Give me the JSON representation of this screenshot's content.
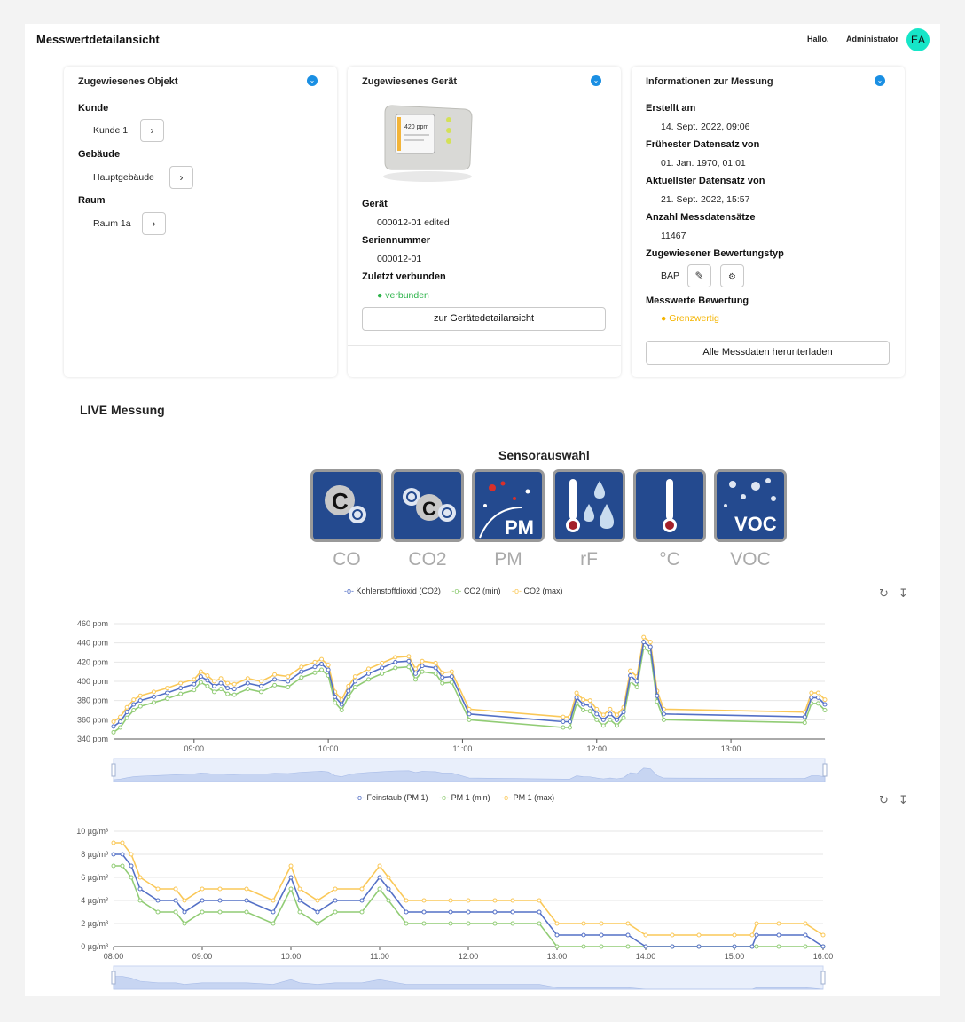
{
  "header": {
    "title": "Messwertdetailansicht",
    "greeting": "Hallo,",
    "user": "Administrator",
    "avatar_initials": "EA"
  },
  "object_card": {
    "title": "Zugewiesenes Objekt",
    "customer_label": "Kunde",
    "customer_value": "Kunde 1",
    "building_label": "Gebäude",
    "building_value": "Hauptgebäude",
    "room_label": "Raum",
    "room_value": "Raum 1a"
  },
  "device_card": {
    "title": "Zugewiesenes Gerät",
    "device_screen_text": "420 ppm",
    "device_label": "Gerät",
    "device_value": "000012-01 edited",
    "serial_label": "Seriennummer",
    "serial_value": "000012-01",
    "last_label": "Zuletzt verbunden",
    "last_value": "verbunden",
    "detail_button": "zur Gerätedetailansicht"
  },
  "info_card": {
    "title": "Informationen zur Messung",
    "created_label": "Erstellt am",
    "created_value": "14. Sept. 2022, 09:06",
    "earliest_label": "Frühester Datensatz von",
    "earliest_value": "01. Jan. 1970, 01:01",
    "latest_label": "Aktuellster Datensatz von",
    "latest_value": "21. Sept. 2022, 15:57",
    "count_label": "Anzahl Messdatensätze",
    "count_value": "11467",
    "rating_type_label": "Zugewiesener Bewertungstyp",
    "rating_type_value": "BAP",
    "rating_label": "Messwerte Bewertung",
    "rating_value": "Grenzwertig",
    "download_button": "Alle Messdaten herunterladen"
  },
  "live": {
    "title": "LIVE Messung",
    "sensor_title": "Sensorauswahl"
  },
  "sensors": [
    {
      "name": "CO",
      "icon": "co-icon"
    },
    {
      "name": "CO2",
      "icon": "co2-icon"
    },
    {
      "name": "PM",
      "icon": "pm-icon"
    },
    {
      "name": "rF",
      "icon": "humidity-icon"
    },
    {
      "name": "°C",
      "icon": "temperature-icon"
    },
    {
      "name": "VOC",
      "icon": "voc-icon"
    }
  ],
  "colors": {
    "blue": "#5470c6",
    "green": "#91cc75",
    "yellow": "#fac858",
    "accent": "#1a8fe3"
  },
  "chart_data": [
    {
      "type": "line",
      "legend_placement": "top-center",
      "series": [
        {
          "name": "Kohlenstoffdioxid (CO2)",
          "color": "#5470c6"
        },
        {
          "name": "CO2 (min)",
          "color": "#91cc75"
        },
        {
          "name": "CO2 (max)",
          "color": "#fac858"
        }
      ],
      "y_ticks": [
        "460 ppm",
        "440 ppm",
        "420 ppm",
        "400 ppm",
        "380 ppm",
        "360 ppm",
        "340 ppm"
      ],
      "ylim": [
        340,
        460
      ],
      "x_ticks": [
        "09:00",
        "10:00",
        "11:00",
        "12:00",
        "13:00"
      ],
      "x_hours": [
        8.4,
        13.7
      ],
      "grid": true,
      "points": [
        [
          8.4,
          353
        ],
        [
          8.45,
          358
        ],
        [
          8.5,
          368
        ],
        [
          8.55,
          376
        ],
        [
          8.6,
          380
        ],
        [
          8.7,
          384
        ],
        [
          8.8,
          388
        ],
        [
          8.9,
          393
        ],
        [
          9.0,
          397
        ],
        [
          9.05,
          405
        ],
        [
          9.1,
          401
        ],
        [
          9.15,
          395
        ],
        [
          9.2,
          398
        ],
        [
          9.25,
          393
        ],
        [
          9.3,
          392
        ],
        [
          9.4,
          398
        ],
        [
          9.5,
          395
        ],
        [
          9.6,
          402
        ],
        [
          9.7,
          400
        ],
        [
          9.8,
          410
        ],
        [
          9.9,
          415
        ],
        [
          9.95,
          418
        ],
        [
          10.0,
          412
        ],
        [
          10.05,
          384
        ],
        [
          10.1,
          376
        ],
        [
          10.15,
          390
        ],
        [
          10.2,
          400
        ],
        [
          10.3,
          408
        ],
        [
          10.4,
          414
        ],
        [
          10.5,
          420
        ],
        [
          10.6,
          421
        ],
        [
          10.65,
          408
        ],
        [
          10.7,
          416
        ],
        [
          10.8,
          414
        ],
        [
          10.85,
          404
        ],
        [
          10.92,
          405
        ],
        [
          11.05,
          366
        ],
        [
          11.75,
          358
        ],
        [
          11.8,
          358
        ],
        [
          11.85,
          383
        ],
        [
          11.9,
          376
        ],
        [
          11.95,
          375
        ],
        [
          12.0,
          366
        ],
        [
          12.05,
          360
        ],
        [
          12.1,
          366
        ],
        [
          12.15,
          360
        ],
        [
          12.2,
          368
        ],
        [
          12.25,
          406
        ],
        [
          12.3,
          400
        ],
        [
          12.35,
          441
        ],
        [
          12.4,
          436
        ],
        [
          12.45,
          385
        ],
        [
          12.5,
          366
        ],
        [
          13.55,
          363
        ],
        [
          13.6,
          383
        ],
        [
          13.65,
          383
        ],
        [
          13.7,
          376
        ]
      ],
      "min_offset": -6,
      "max_offset": 5
    },
    {
      "type": "line",
      "legend_placement": "top-center",
      "series": [
        {
          "name": "Feinstaub (PM 1)",
          "color": "#5470c6"
        },
        {
          "name": "PM 1 (min)",
          "color": "#91cc75"
        },
        {
          "name": "PM 1 (max)",
          "color": "#fac858"
        }
      ],
      "y_ticks": [
        "10 µg/m³",
        "8 µg/m³",
        "6 µg/m³",
        "4 µg/m³",
        "2 µg/m³",
        "0 µg/m³"
      ],
      "ylim": [
        0,
        10
      ],
      "x_ticks": [
        "08:00",
        "09:00",
        "10:00",
        "11:00",
        "12:00",
        "13:00",
        "14:00",
        "15:00",
        "16:00"
      ],
      "x_hours": [
        8.0,
        16.0
      ],
      "grid": true,
      "points": [
        [
          8.0,
          8
        ],
        [
          8.1,
          8
        ],
        [
          8.2,
          7
        ],
        [
          8.3,
          5
        ],
        [
          8.5,
          4
        ],
        [
          8.7,
          4
        ],
        [
          8.8,
          3
        ],
        [
          9.0,
          4
        ],
        [
          9.2,
          4
        ],
        [
          9.5,
          4
        ],
        [
          9.8,
          3
        ],
        [
          10.0,
          6
        ],
        [
          10.1,
          4
        ],
        [
          10.3,
          3
        ],
        [
          10.5,
          4
        ],
        [
          10.8,
          4
        ],
        [
          11.0,
          6
        ],
        [
          11.1,
          5
        ],
        [
          11.3,
          3
        ],
        [
          11.5,
          3
        ],
        [
          11.8,
          3
        ],
        [
          12.0,
          3
        ],
        [
          12.3,
          3
        ],
        [
          12.5,
          3
        ],
        [
          12.8,
          3
        ],
        [
          13.0,
          1
        ],
        [
          13.3,
          1
        ],
        [
          13.5,
          1
        ],
        [
          13.8,
          1
        ],
        [
          14.0,
          0
        ],
        [
          14.3,
          0
        ],
        [
          14.6,
          0
        ],
        [
          15.0,
          0
        ],
        [
          15.2,
          0
        ],
        [
          15.25,
          1
        ],
        [
          15.5,
          1
        ],
        [
          15.8,
          1
        ],
        [
          16.0,
          0
        ]
      ],
      "min_offset": -1,
      "max_offset": 1
    }
  ]
}
